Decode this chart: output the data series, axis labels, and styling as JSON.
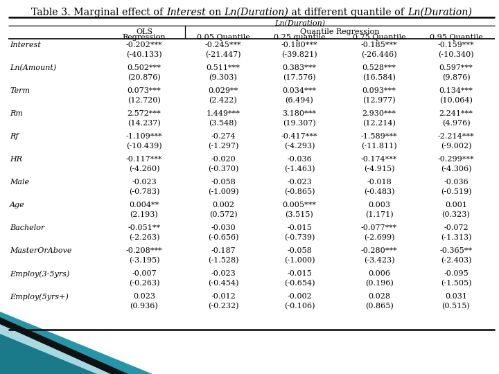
{
  "title_parts": [
    [
      "Table 3. Marginal effect of ",
      false
    ],
    [
      "Interest",
      true
    ],
    [
      " on ",
      false
    ],
    [
      "Ln(Duration)",
      true
    ],
    [
      " at different quantile of ",
      false
    ],
    [
      "Ln(Duration)",
      true
    ]
  ],
  "col_headers": [
    "0.05 Quantile",
    "0.25 quantile",
    "0.75 Quantile",
    "0.95 Quantile"
  ],
  "row_labels": [
    "Interest",
    "Ln(Amount)",
    "Term",
    "Rm",
    "Rf",
    "HR",
    "Male",
    "Age",
    "Bachelor",
    "MasterOrAbove",
    "Employ(3-5yrs)",
    "Employ(5yrs+)"
  ],
  "ols_data": [
    "-0.202***",
    "(-40.133)",
    "0.502***",
    "(20.876)",
    "0.073***",
    "(12.720)",
    "2.572***",
    "(14.237)",
    "-1.109***",
    "(-10.439)",
    "-0.117***",
    "(-4.260)",
    "-0.023",
    "(-0.783)",
    "0.004**",
    "(2.193)",
    "-0.051**",
    "(-2.263)",
    "-0.208***",
    "(-3.195)",
    "-0.007",
    "(-0.263)",
    "0.023",
    "(0.936)"
  ],
  "q05_data": [
    "-0.245***",
    "(-21.447)",
    "0.511***",
    "(9.303)",
    "0.029**",
    "(2.422)",
    "1.449***",
    "(3.548)",
    "-0.274",
    "(-1.297)",
    "-0.020",
    "(-0.370)",
    "-0.058",
    "(-1.009)",
    "0.002",
    "(0.572)",
    "-0.030",
    "(-0.656)",
    "-0.187",
    "(-1.528)",
    "-0.023",
    "(-0.454)",
    "-0.012",
    "(-0.232)"
  ],
  "q25_data": [
    "-0.180***",
    "(-39.821)",
    "0.383***",
    "(17.576)",
    "0.034***",
    "(6.494)",
    "3.180***",
    "(19.307)",
    "-0.417***",
    "(-4.293)",
    "-0.036",
    "(-1.463)",
    "-0.023",
    "(-0.865)",
    "0.005***",
    "(3.515)",
    "-0.015",
    "(-0.739)",
    "-0.058",
    "(-1.000)",
    "-0.015",
    "(-0.654)",
    "-0.002",
    "(-0.106)"
  ],
  "q75_data": [
    "-0.185***",
    "(-26.446)",
    "0.528***",
    "(16.584)",
    "0.093***",
    "(12.977)",
    "2.930***",
    "(12.214)",
    "-1.589***",
    "(-11.811)",
    "-0.174***",
    "(-4.915)",
    "-0.018",
    "(-0.483)",
    "0.003",
    "(1.171)",
    "-0.077***",
    "(-2.699)",
    "-0.280***",
    "(-3.423)",
    "0.006",
    "(0.196)",
    "0.028",
    "(0.865)"
  ],
  "q95_data": [
    "-0.159***",
    "(-10.340)",
    "0.597***",
    "(9.876)",
    "0.134***",
    "(10.064)",
    "2.241***",
    "(4.976)",
    "-2.214***",
    "(-9.002)",
    "-0.299***",
    "(-4.306)",
    "-0.036",
    "(-0.519)",
    "0.001",
    "(0.323)",
    "-0.072",
    "(-1.313)",
    "-0.365**",
    "(-2.403)",
    "-0.095",
    "(-1.505)",
    "0.031",
    "(0.515)"
  ],
  "bg_color": "#ffffff",
  "teal_color": "#2a9db0",
  "teal_dark": "#1a6e7e",
  "black_stripe": "#111111"
}
